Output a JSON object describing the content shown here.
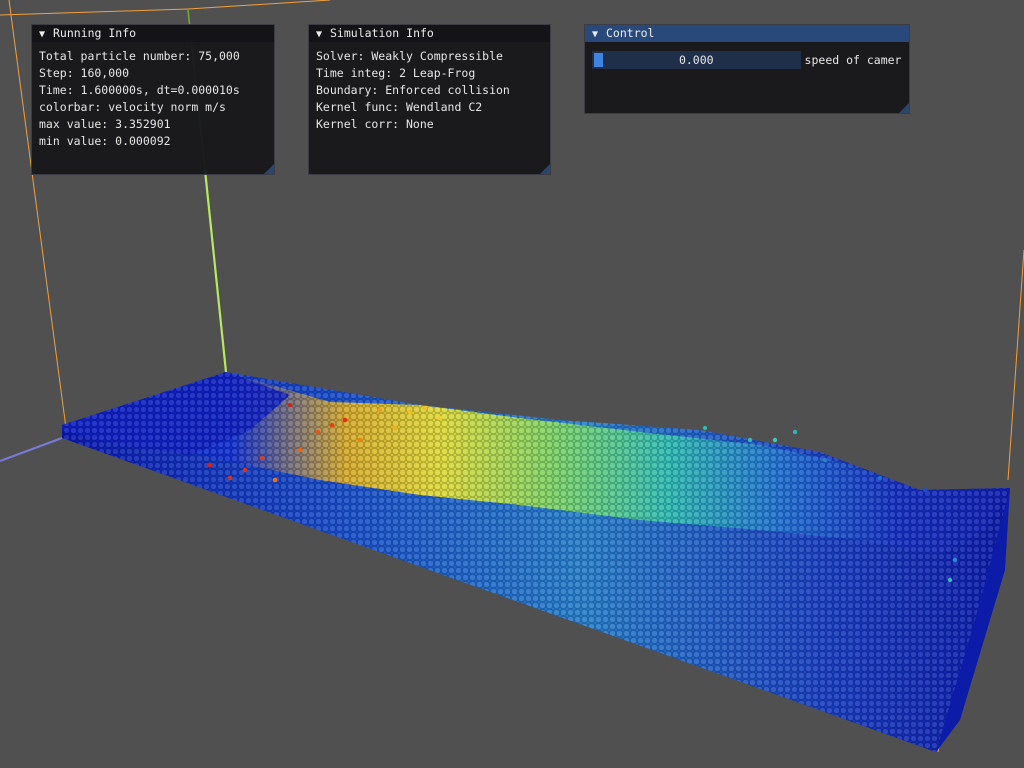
{
  "running_info": {
    "title": "Running Info",
    "lines": [
      "Total particle number: 75,000",
      "Step: 160,000",
      "Time: 1.600000s, dt=0.000010s",
      "colorbar: velocity norm m/s",
      "max value: 3.352901",
      "min value: 0.000092"
    ]
  },
  "simulation_info": {
    "title": "Simulation Info",
    "lines": [
      "Solver: Weakly Compressible",
      "Time integ: 2 Leap-Frog",
      "Boundary: Enforced collision",
      "Kernel func: Wendland C2",
      "Kernel corr: None"
    ]
  },
  "control": {
    "title": "Control",
    "slider_value": "0.000",
    "slider_label": "speed of camer"
  },
  "colors": {
    "background": "#505050",
    "box_edge": "#f0a040",
    "axis_x": "#7a7ad8",
    "axis_y": "#b8e860",
    "active_title": "#29497a",
    "slider_grab": "#3d85e0"
  },
  "icons": {
    "collapse": "▼"
  }
}
